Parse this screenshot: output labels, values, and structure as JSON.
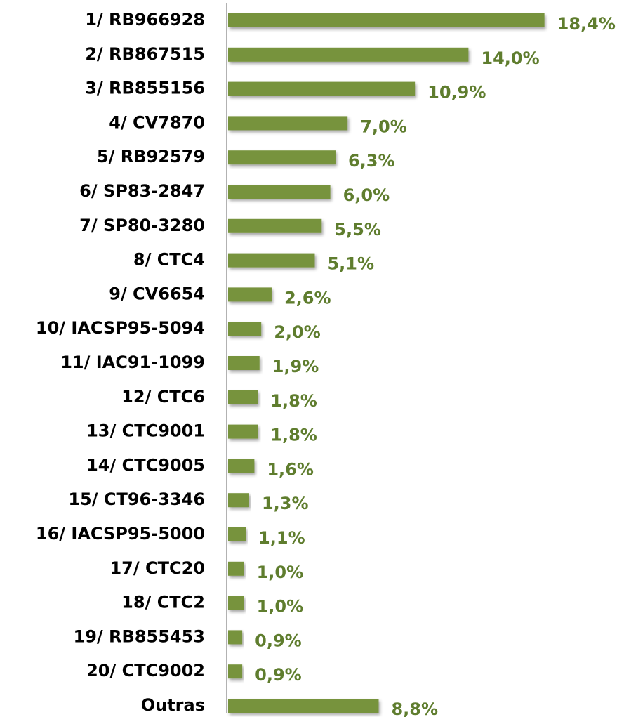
{
  "chart_data": {
    "type": "bar",
    "orientation": "horizontal",
    "color": "#77933c",
    "label_color": "#5f7d2e",
    "categories": [
      "1/ RB966928",
      "2/ RB867515",
      "3/ RB855156",
      "4/ CV7870",
      "5/ RB92579",
      "6/ SP83-2847",
      "7/ SP80-3280",
      "8/ CTC4",
      "9/ CV6654",
      "10/ IACSP95-5094",
      "11/ IAC91-1099",
      "12/ CTC6",
      "13/ CTC9001",
      "14/ CTC9005",
      "15/ CT96-3346",
      "16/ IACSP95-5000",
      "17/ CTC20",
      "18/ CTC2",
      "19/ RB855453",
      "20/ CTC9002",
      "Outras"
    ],
    "values": [
      18.4,
      14.0,
      10.9,
      7.0,
      6.3,
      6.0,
      5.5,
      5.1,
      2.6,
      2.0,
      1.9,
      1.8,
      1.8,
      1.6,
      1.3,
      1.1,
      1.0,
      1.0,
      0.9,
      0.9,
      8.8
    ],
    "value_labels": [
      "18,4%",
      "14,0%",
      "10,9%",
      "7,0%",
      "6,3%",
      "6,0%",
      "5,5%",
      "5,1%",
      "2,6%",
      "2,0%",
      "1,9%",
      "1,8%",
      "1,8%",
      "1,6%",
      "1,3%",
      "1,1%",
      "1,0%",
      "1,0%",
      "0,9%",
      "0,9%",
      "8,8%"
    ]
  }
}
